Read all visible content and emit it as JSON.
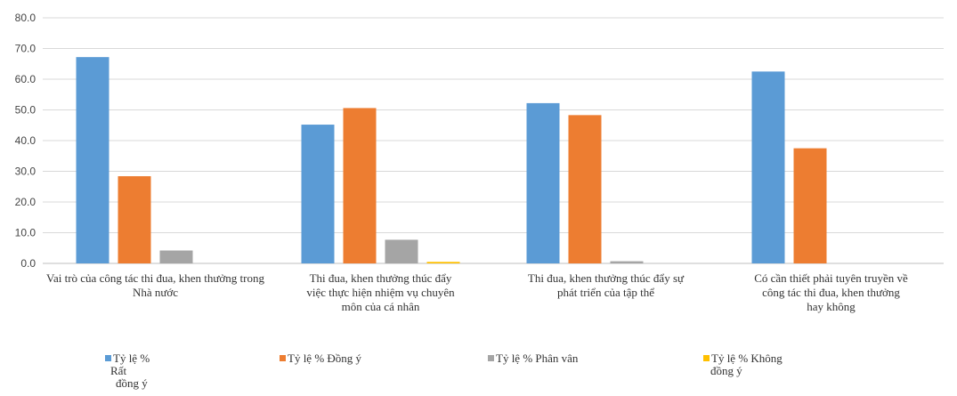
{
  "chart_data": {
    "type": "bar",
    "title": "",
    "xlabel": "",
    "ylabel": "",
    "ylim": [
      0,
      80
    ],
    "yticks": [
      "0.0",
      "10.0",
      "20.0",
      "30.0",
      "40.0",
      "50.0",
      "60.0",
      "70.0",
      "80.0"
    ],
    "grid": true,
    "legend_position": "bottom",
    "categories": [
      [
        "Vai trò của công tác thi đua, khen thưởng trong",
        "Nhà nước"
      ],
      [
        "Thi đua, khen thưởng thúc đẩy",
        "việc thực hiện nhiệm vụ chuyên",
        "môn của cá nhân"
      ],
      [
        "Thi đua, khen thưởng thúc đẩy sự",
        "phát triển của tập thể"
      ],
      [
        "Có cần thiết phải tuyên truyền về",
        "công tác thi đua, khen thưởng",
        "hay không"
      ]
    ],
    "series": [
      {
        "name": [
          "Tỷ lệ %",
          "Rất",
          "đồng ý"
        ],
        "color": "#5B9BD5",
        "values": [
          67.2,
          45.2,
          52.2,
          62.5
        ]
      },
      {
        "name": [
          "Tỷ lệ %  Đồng ý"
        ],
        "color": "#ED7D31",
        "values": [
          28.4,
          50.6,
          48.3,
          37.5
        ]
      },
      {
        "name": [
          "Tỷ lệ %  Phân vân"
        ],
        "color": "#A5A5A5",
        "values": [
          4.2,
          7.7,
          0.7,
          0.0
        ]
      },
      {
        "name": [
          "Tỷ lệ %  Không",
          "đồng ý"
        ],
        "color": "#FFC000",
        "values": [
          0.0,
          0.5,
          0.0,
          0.0
        ]
      }
    ]
  }
}
